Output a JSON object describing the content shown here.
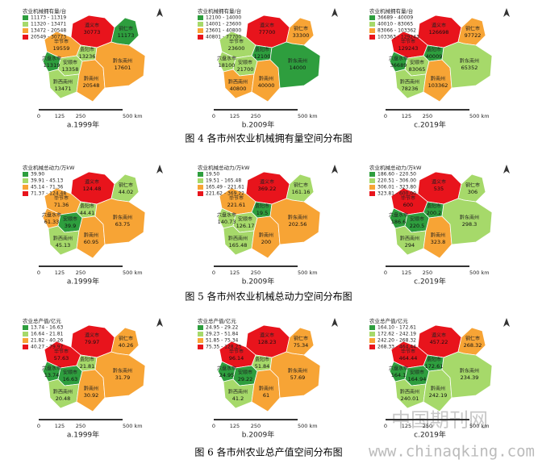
{
  "regions": [
    "遵义市",
    "铜仁市",
    "毕节市",
    "六盘水市",
    "贵阳市",
    "安顺市",
    "黔西南州",
    "黔南州",
    "黔东南州"
  ],
  "scale_labels": [
    "0",
    "125",
    "250",
    "500 km"
  ],
  "figures": [
    {
      "caption": "图 4  各市州农业机械拥有量空间分布图",
      "panels": [
        {
          "subcaption": "a.1999年",
          "legend_title": "农业机械拥有量/台",
          "legend": [
            {
              "label": "11173 - 11319",
              "color": "#2e9e3e"
            },
            {
              "label": "11320 - 13471",
              "color": "#a6d96a"
            },
            {
              "label": "13472 - 20548",
              "color": "#f7a435"
            },
            {
              "label": "20549 - 30773",
              "color": "#e8141c"
            }
          ],
          "values": [
            30773,
            11173,
            19559,
            11319,
            13236,
            13358,
            13471,
            20548,
            17601
          ],
          "colors": [
            "#e8141c",
            "#2e9e3e",
            "#f7a435",
            "#2e9e3e",
            "#a6d96a",
            "#a6d96a",
            "#a6d96a",
            "#f7a435",
            "#f7a435"
          ]
        },
        {
          "subcaption": "b.2009年",
          "legend_title": "农业机械拥有量/台",
          "legend": [
            {
              "label": "12100 - 14000",
              "color": "#2e9e3e"
            },
            {
              "label": "14001 - 23600",
              "color": "#a6d96a"
            },
            {
              "label": "23601 - 40800",
              "color": "#f7a435"
            },
            {
              "label": "40801 - 77700",
              "color": "#e8141c"
            }
          ],
          "values": [
            77700,
            33300,
            23600,
            18100,
            12100,
            21700,
            40800,
            40000,
            14000
          ],
          "colors": [
            "#e8141c",
            "#f7a435",
            "#a6d96a",
            "#a6d96a",
            "#2e9e3e",
            "#a6d96a",
            "#f7a435",
            "#f7a435",
            "#2e9e3e"
          ]
        },
        {
          "subcaption": "c.2019年",
          "legend_title": "农业机械拥有量/台",
          "legend": [
            {
              "label": "36689 - 40009",
              "color": "#2e9e3e"
            },
            {
              "label": "40010 - 83065",
              "color": "#a6d96a"
            },
            {
              "label": "83066 - 103362",
              "color": "#f7a435"
            },
            {
              "label": "103363 - 129243",
              "color": "#e8141c"
            }
          ],
          "values": [
            126698,
            97722,
            129243,
            36689,
            40009,
            83065,
            78236,
            103362,
            65352
          ],
          "colors": [
            "#e8141c",
            "#f7a435",
            "#e8141c",
            "#2e9e3e",
            "#2e9e3e",
            "#a6d96a",
            "#a6d96a",
            "#f7a435",
            "#a6d96a"
          ]
        }
      ]
    },
    {
      "caption": "图 5  各市州农业机械总动力空间分布图",
      "panels": [
        {
          "subcaption": "a.1999年",
          "legend_title": "农业机械总动力/万kW",
          "legend": [
            {
              "label": "39.90",
              "color": "#2e9e3e"
            },
            {
              "label": "39.91 - 45.13",
              "color": "#a6d96a"
            },
            {
              "label": "45.14 - 71.36",
              "color": "#f7a435"
            },
            {
              "label": "71.37 - 124.48",
              "color": "#e8141c"
            }
          ],
          "values": [
            124.48,
            44.02,
            71.36,
            61.33,
            44.41,
            39.9,
            45.13,
            60.95,
            63.75
          ],
          "colors": [
            "#e8141c",
            "#a6d96a",
            "#f7a435",
            "#f7a435",
            "#a6d96a",
            "#2e9e3e",
            "#a6d96a",
            "#f7a435",
            "#f7a435"
          ]
        },
        {
          "subcaption": "b.2009年",
          "legend_title": "农业机械总动力/万kW",
          "legend": [
            {
              "label": "19.50",
              "color": "#2e9e3e"
            },
            {
              "label": "19.51 - 165.48",
              "color": "#a6d96a"
            },
            {
              "label": "165.49 - 221.61",
              "color": "#f7a435"
            },
            {
              "label": "221.62 - 369.22",
              "color": "#e8141c"
            }
          ],
          "values": [
            369.22,
            161.16,
            221.61,
            140.73,
            19.5,
            126.17,
            165.48,
            200,
            202.56
          ],
          "colors": [
            "#e8141c",
            "#a6d96a",
            "#f7a435",
            "#a6d96a",
            "#2e9e3e",
            "#a6d96a",
            "#a6d96a",
            "#f7a435",
            "#f7a435"
          ]
        },
        {
          "subcaption": "c.2019年",
          "legend_title": "农业机械总动力/万kW",
          "legend": [
            {
              "label": "186.60 - 220.50",
              "color": "#2e9e3e"
            },
            {
              "label": "220.51 - 306.00",
              "color": "#a6d96a"
            },
            {
              "label": "306.01 - 323.80",
              "color": "#f7a435"
            },
            {
              "label": "323.81 - 600.00",
              "color": "#e8141c"
            }
          ],
          "values": [
            535,
            306,
            600,
            186.6,
            200.2,
            220.5,
            294,
            323.8,
            298.3
          ],
          "colors": [
            "#e8141c",
            "#a6d96a",
            "#e8141c",
            "#2e9e3e",
            "#2e9e3e",
            "#2e9e3e",
            "#a6d96a",
            "#f7a435",
            "#a6d96a"
          ]
        }
      ]
    },
    {
      "caption": "图 6  各市州农业总产值空间分布图",
      "panels": [
        {
          "subcaption": "a.1999年",
          "legend_title": "农业总产值/亿元",
          "legend": [
            {
              "label": "13.74 - 16.63",
              "color": "#2e9e3e"
            },
            {
              "label": "16.64 - 21.81",
              "color": "#a6d96a"
            },
            {
              "label": "21.82 - 40.26",
              "color": "#f7a435"
            },
            {
              "label": "40.27 - 79.97",
              "color": "#e8141c"
            }
          ],
          "values": [
            79.97,
            40.26,
            57.63,
            13.74,
            21.81,
            16.63,
            20.48,
            30.92,
            31.79
          ],
          "colors": [
            "#e8141c",
            "#f7a435",
            "#e8141c",
            "#2e9e3e",
            "#a6d96a",
            "#2e9e3e",
            "#a6d96a",
            "#f7a435",
            "#f7a435"
          ]
        },
        {
          "subcaption": "b.2009年",
          "legend_title": "农业总产值/亿元",
          "legend": [
            {
              "label": "24.95 - 29.22",
              "color": "#2e9e3e"
            },
            {
              "label": "29.23 - 51.84",
              "color": "#a6d96a"
            },
            {
              "label": "51.85 - 75.34",
              "color": "#f7a435"
            },
            {
              "label": "75.35 - 128.23",
              "color": "#e8141c"
            }
          ],
          "values": [
            128.23,
            75.34,
            96.14,
            24.95,
            51.84,
            29.22,
            41.2,
            61,
            57.69
          ],
          "colors": [
            "#e8141c",
            "#f7a435",
            "#e8141c",
            "#2e9e3e",
            "#a6d96a",
            "#2e9e3e",
            "#a6d96a",
            "#f7a435",
            "#f7a435"
          ]
        },
        {
          "subcaption": "c.2019年",
          "legend_title": "农业总产值/亿元",
          "legend": [
            {
              "label": "164.10 - 172.61",
              "color": "#2e9e3e"
            },
            {
              "label": "172.62 - 242.19",
              "color": "#a6d96a"
            },
            {
              "label": "242.20 - 268.32",
              "color": "#f7a435"
            },
            {
              "label": "268.33 - 464.44",
              "color": "#e8141c"
            }
          ],
          "values": [
            457.22,
            268.32,
            464.44,
            164.1,
            172.61,
            164.94,
            240.01,
            242.19,
            234.39
          ],
          "colors": [
            "#e8141c",
            "#f7a435",
            "#e8141c",
            "#2e9e3e",
            "#2e9e3e",
            "#2e9e3e",
            "#a6d96a",
            "#a6d96a",
            "#a6d96a"
          ]
        }
      ]
    }
  ],
  "watermark": {
    "name": "中国期刊网",
    "url": "www.chinaqking.com"
  }
}
